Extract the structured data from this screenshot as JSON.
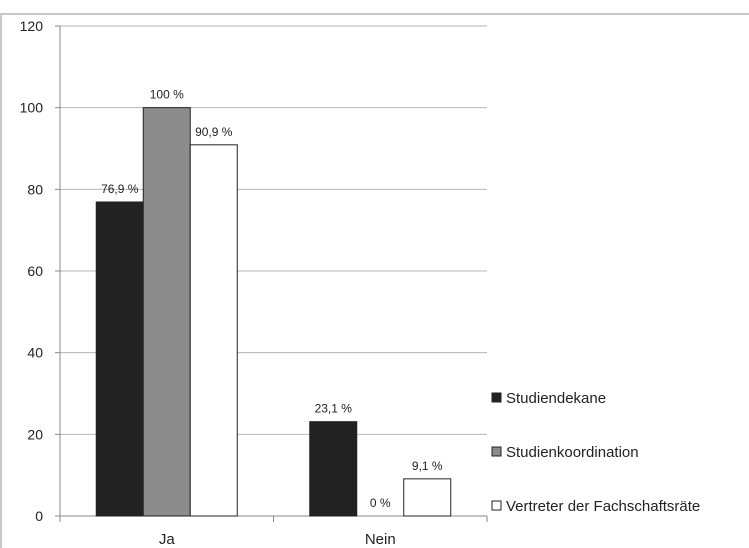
{
  "chart_data": {
    "type": "bar",
    "categories": [
      "Ja",
      "Nein"
    ],
    "series": [
      {
        "name": "Studiendekane",
        "values": [
          76.9,
          23.1
        ],
        "labels": [
          "76,9 %",
          "23,1 %"
        ],
        "color": "#222222"
      },
      {
        "name": "Studienkoordination",
        "values": [
          100,
          0
        ],
        "labels": [
          "100 %",
          "0 %"
        ],
        "color": "#8c8c8c"
      },
      {
        "name": "Vertreter der Fachschaftsräte",
        "values": [
          90.9,
          9.1
        ],
        "labels": [
          "90,9 %",
          "9,1 %"
        ],
        "color": "#ffffff"
      }
    ],
    "yticks": [
      "0",
      "20",
      "40",
      "60",
      "80",
      "100",
      "120"
    ],
    "ylim": [
      0,
      120
    ],
    "grid": true,
    "legend_position": "right",
    "title": "",
    "xlabel": "",
    "ylabel": ""
  }
}
